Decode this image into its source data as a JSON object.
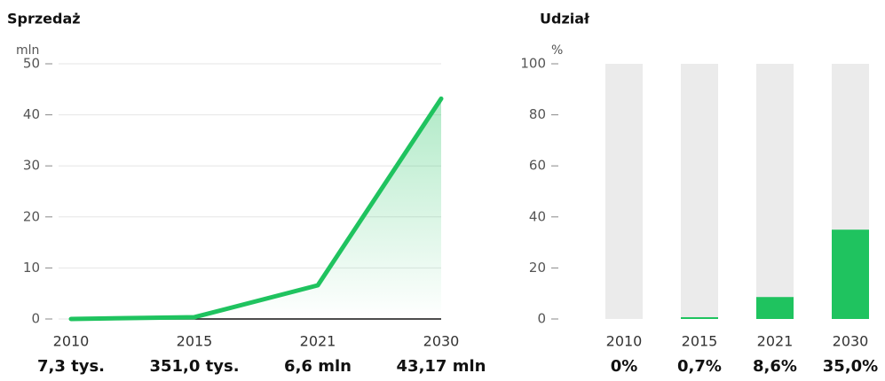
{
  "chart_data": [
    {
      "type": "line",
      "title": "Sprzedaż",
      "y_label": "mln",
      "categories": [
        "2010",
        "2015",
        "2021",
        "2030"
      ],
      "values": [
        0.0073,
        0.351,
        6.6,
        43.17
      ],
      "value_labels": [
        "7,3 tys.",
        "351,0 tys.",
        "6,6 mln",
        "43,17 mln"
      ],
      "color": "#1fc35f",
      "ylim": [
        0,
        50
      ],
      "yticks": [
        0,
        10,
        20,
        30,
        40,
        50
      ],
      "grid": true
    },
    {
      "type": "bar",
      "title": "Udział",
      "y_label": "%",
      "categories": [
        "2010",
        "2015",
        "2021",
        "2030"
      ],
      "values": [
        0,
        0.7,
        8.6,
        35.0
      ],
      "value_labels": [
        "0%",
        "0,7%",
        "8,6%",
        "35,0%"
      ],
      "color": "#1fc35f",
      "background_color": "#ebebeb",
      "ylim": [
        0,
        100
      ],
      "yticks": [
        0,
        20,
        40,
        60,
        80,
        100
      ],
      "grid": false
    }
  ]
}
